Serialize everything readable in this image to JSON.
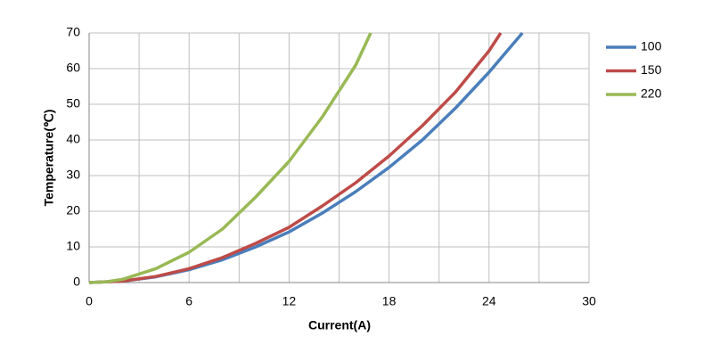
{
  "chart_data": {
    "type": "line",
    "x_label": "Current(A)",
    "y_label": "Temperature(℃)",
    "xlim": [
      0,
      30
    ],
    "xticks": [
      0,
      6,
      12,
      18,
      24,
      30
    ],
    "ylim": [
      0,
      70
    ],
    "yticks": [
      0,
      10,
      20,
      30,
      40,
      50,
      60,
      70
    ],
    "grid": true,
    "legend": "right",
    "series": [
      {
        "name": "100",
        "color": "#4a7ebb",
        "x": [
          0,
          2,
          4,
          6,
          8,
          10,
          12,
          14,
          16,
          18,
          20,
          22,
          24,
          26
        ],
        "values": [
          0,
          0.4,
          1.6,
          3.6,
          6.4,
          10,
          14.2,
          19.5,
          25.5,
          32.3,
          40,
          49,
          59,
          70
        ]
      },
      {
        "name": "150",
        "color": "#be4b48",
        "x": [
          0,
          2,
          4,
          6,
          8,
          10,
          12,
          14,
          16,
          18,
          20,
          22,
          24,
          24.7
        ],
        "values": [
          0,
          0.4,
          1.7,
          3.9,
          7,
          11,
          15.5,
          21.5,
          28,
          35.5,
          44,
          53.5,
          65,
          70
        ]
      },
      {
        "name": "220",
        "color": "#98b954",
        "x": [
          0,
          1,
          2,
          4,
          6,
          8,
          10,
          12,
          14,
          16,
          16.9
        ],
        "values": [
          0,
          0.2,
          0.9,
          3.9,
          8.5,
          15,
          24,
          34,
          46.5,
          61,
          70
        ]
      }
    ]
  }
}
